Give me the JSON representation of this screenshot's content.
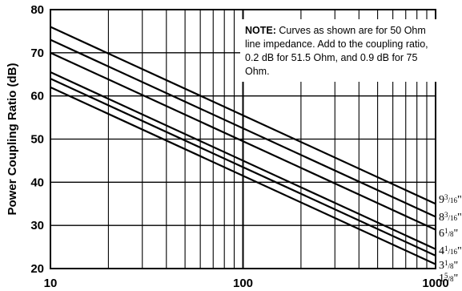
{
  "chart_data": {
    "type": "line",
    "xscale": "log",
    "xlim": [
      10,
      1000
    ],
    "ylim": [
      20,
      80
    ],
    "grid": true,
    "ylabel": "Power Coupling Ratio (dB)",
    "xlabel": "",
    "x_ticks": [
      10,
      100,
      1000
    ],
    "x_tick_labels": [
      "10",
      "100",
      "1000"
    ],
    "y_ticks": [
      20,
      30,
      40,
      50,
      60,
      70,
      80
    ],
    "y_tick_labels": [
      "20",
      "30",
      "40",
      "50",
      "60",
      "70",
      "80"
    ],
    "note": {
      "label": "NOTE:",
      "text": "Curves as shown are for 50 Ohm line impedance. Add to the coupling ratio, 0.2 dB for 51.5 Ohm, and 0.9 dB for 75 Ohm."
    },
    "series": [
      {
        "name": "9 3/16\"",
        "label_main": "9",
        "label_num": "3",
        "label_den": "16",
        "x": [
          10,
          1000
        ],
        "y": [
          76,
          35
        ]
      },
      {
        "name": "8 3/16\"",
        "label_main": "8",
        "label_num": "3",
        "label_den": "16",
        "x": [
          10,
          1000
        ],
        "y": [
          73,
          32
        ]
      },
      {
        "name": "6 1/8\"",
        "label_main": "6",
        "label_num": "1",
        "label_den": "8",
        "x": [
          10,
          1000
        ],
        "y": [
          70,
          29
        ]
      },
      {
        "name": "4 1/16\"",
        "label_main": "4",
        "label_num": "1",
        "label_den": "16",
        "x": [
          10,
          1000
        ],
        "y": [
          65.5,
          24.5
        ]
      },
      {
        "name": "3 1/8\"",
        "label_main": "3",
        "label_num": "1",
        "label_den": "8",
        "x": [
          10,
          1000
        ],
        "y": [
          64,
          23
        ]
      },
      {
        "name": "1 5/8\"",
        "label_main": "1",
        "label_num": "5",
        "label_den": "8",
        "x": [
          10,
          1000
        ],
        "y": [
          62,
          21
        ]
      }
    ]
  }
}
